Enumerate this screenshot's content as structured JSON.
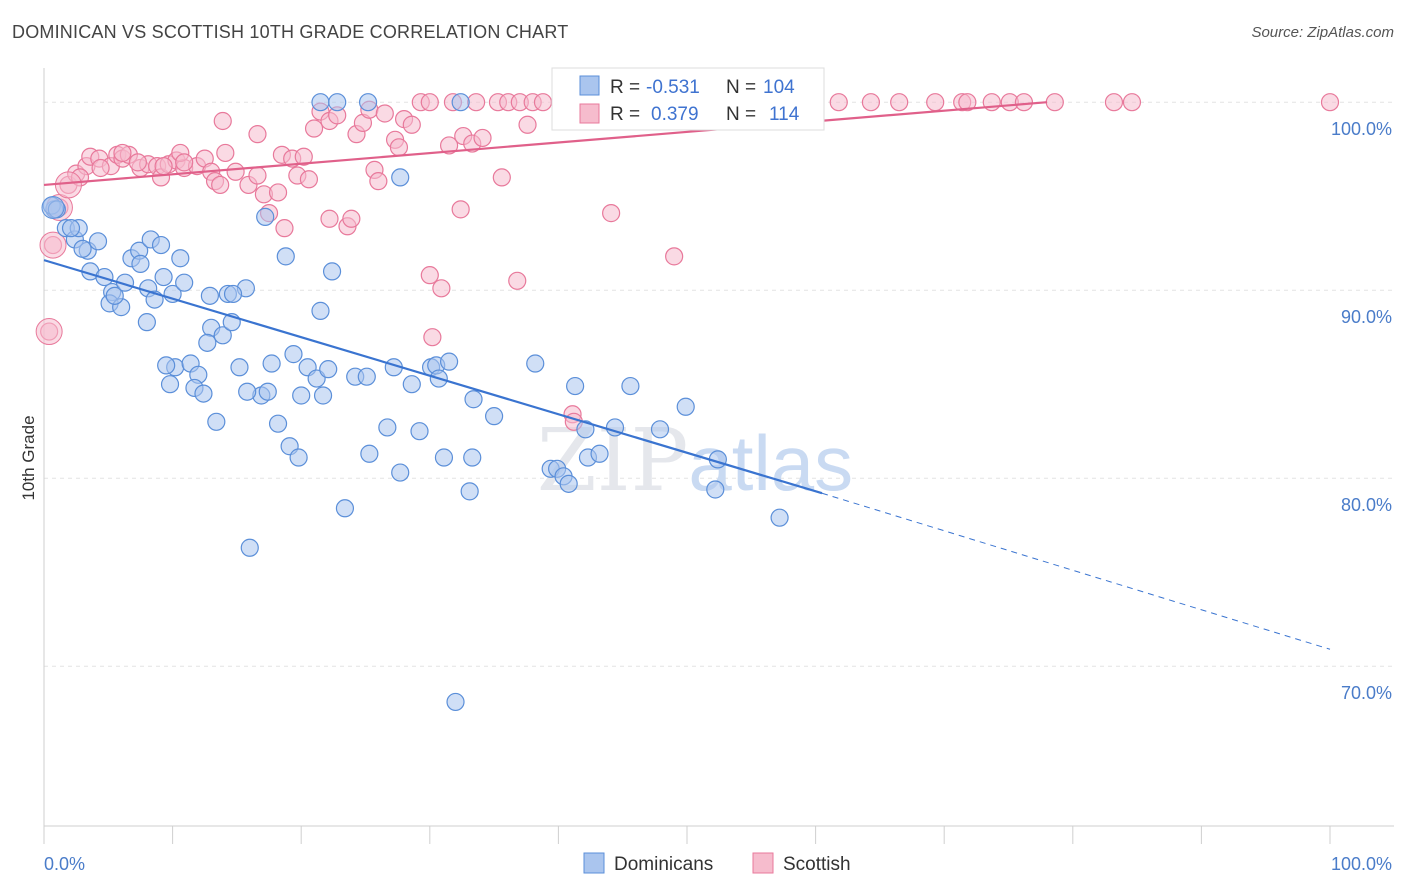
{
  "title": "DOMINICAN VS SCOTTISH 10TH GRADE CORRELATION CHART",
  "source": "Source: ZipAtlas.com",
  "watermark": "ZIPatlas",
  "colors": {
    "blue": "#5b8fd9",
    "blue_fill": "#aac5ee",
    "pink": "#e8799b",
    "pink_fill": "#f6bccd",
    "axis_text": "#4a7cc9"
  },
  "legend": {
    "rows": [
      {
        "r_label": "R =",
        "r_value": "-0.531",
        "n_label": "N =",
        "n_value": "104"
      },
      {
        "r_label": "R =",
        "r_value": "0.379",
        "n_label": "N =",
        "n_value": "114"
      }
    ]
  },
  "bottom_legend": {
    "items": [
      "Dominicans",
      "Scottish"
    ]
  },
  "chart_data": {
    "type": "scatter",
    "title": "DOMINICAN VS SCOTTISH 10TH GRADE CORRELATION CHART",
    "ylabel": "10th Grade",
    "xlabel": "",
    "x_tick_labels": [
      "0.0%",
      "100.0%"
    ],
    "y_tick_labels": [
      "100.0%",
      "90.0%",
      "80.0%",
      "70.0%"
    ],
    "y_ticks": [
      100,
      90,
      80,
      70
    ],
    "xlim": [
      0,
      100
    ],
    "ylim": [
      61.5,
      101.5
    ],
    "grid": true,
    "legend_position": "top-center",
    "series": [
      {
        "name": "Dominicans",
        "color": "#5b8fd9",
        "r": -0.531,
        "n": 104,
        "trend": {
          "x0": 0,
          "y0": 91.6,
          "x1": 60.5,
          "y1": 79.2,
          "dash_to_x": 100,
          "dash_to_y": 70.9
        },
        "points": [
          [
            0.8,
            94.3
          ],
          [
            0.6,
            94.5
          ],
          [
            1.7,
            93.3
          ],
          [
            2.4,
            92.7
          ],
          [
            2.7,
            93.3
          ],
          [
            3.4,
            92.1
          ],
          [
            4.2,
            92.6
          ],
          [
            3.0,
            92.2
          ],
          [
            3.6,
            91.0
          ],
          [
            4.7,
            90.7
          ],
          [
            5.3,
            89.9
          ],
          [
            5.1,
            89.3
          ],
          [
            6.0,
            89.1
          ],
          [
            6.8,
            91.7
          ],
          [
            7.4,
            92.1
          ],
          [
            7.5,
            91.4
          ],
          [
            8.1,
            90.1
          ],
          [
            8.6,
            89.5
          ],
          [
            8.3,
            92.7
          ],
          [
            9.1,
            92.4
          ],
          [
            9.3,
            90.7
          ],
          [
            10.0,
            89.8
          ],
          [
            10.6,
            91.7
          ],
          [
            10.9,
            90.4
          ],
          [
            12.9,
            89.7
          ],
          [
            14.3,
            89.8
          ],
          [
            15.7,
            90.1
          ],
          [
            14.7,
            89.8
          ],
          [
            13.0,
            88.0
          ],
          [
            12.7,
            87.2
          ],
          [
            13.9,
            87.6
          ],
          [
            14.6,
            88.3
          ],
          [
            10.2,
            85.9
          ],
          [
            11.4,
            86.1
          ],
          [
            12.0,
            85.5
          ],
          [
            9.8,
            85.0
          ],
          [
            11.7,
            84.8
          ],
          [
            12.4,
            84.5
          ],
          [
            15.2,
            85.9
          ],
          [
            17.7,
            86.1
          ],
          [
            16.9,
            84.4
          ],
          [
            17.4,
            84.6
          ],
          [
            19.4,
            86.6
          ],
          [
            20.5,
            85.9
          ],
          [
            21.2,
            85.3
          ],
          [
            21.7,
            84.4
          ],
          [
            22.1,
            85.8
          ],
          [
            24.2,
            85.4
          ],
          [
            25.1,
            85.4
          ],
          [
            27.2,
            85.9
          ],
          [
            28.6,
            85.0
          ],
          [
            30.1,
            85.9
          ],
          [
            30.5,
            86.0
          ],
          [
            30.7,
            85.3
          ],
          [
            31.5,
            86.2
          ],
          [
            33.4,
            84.2
          ],
          [
            35.0,
            83.3
          ],
          [
            38.2,
            86.1
          ],
          [
            41.3,
            84.9
          ],
          [
            45.6,
            84.9
          ],
          [
            13.4,
            83.0
          ],
          [
            18.2,
            82.9
          ],
          [
            19.1,
            81.7
          ],
          [
            19.8,
            81.1
          ],
          [
            25.3,
            81.3
          ],
          [
            26.7,
            82.7
          ],
          [
            27.7,
            80.3
          ],
          [
            29.2,
            82.5
          ],
          [
            31.1,
            81.1
          ],
          [
            33.3,
            81.1
          ],
          [
            39.4,
            80.5
          ],
          [
            39.9,
            80.5
          ],
          [
            40.4,
            80.1
          ],
          [
            40.8,
            79.7
          ],
          [
            42.3,
            81.1
          ],
          [
            43.2,
            81.3
          ],
          [
            42.1,
            82.6
          ],
          [
            44.4,
            82.7
          ],
          [
            47.9,
            82.6
          ],
          [
            49.9,
            83.8
          ],
          [
            52.4,
            81.0
          ],
          [
            52.2,
            79.4
          ],
          [
            57.2,
            77.9
          ],
          [
            33.1,
            79.3
          ],
          [
            23.4,
            78.4
          ],
          [
            16.0,
            76.3
          ],
          [
            32.0,
            68.1
          ],
          [
            17.2,
            93.9
          ],
          [
            18.8,
            91.8
          ],
          [
            21.5,
            88.9
          ],
          [
            22.4,
            91.0
          ],
          [
            27.7,
            96.0
          ],
          [
            25.2,
            100.0
          ],
          [
            21.5,
            100.0
          ],
          [
            22.8,
            100.0
          ],
          [
            32.4,
            100.0
          ],
          [
            1.0,
            94.3
          ],
          [
            2.1,
            93.3
          ],
          [
            5.5,
            89.7
          ],
          [
            8.0,
            88.3
          ],
          [
            9.5,
            86.0
          ],
          [
            6.3,
            90.4
          ],
          [
            15.8,
            84.6
          ],
          [
            20.0,
            84.4
          ]
        ]
      },
      {
        "name": "Scottish",
        "color": "#e8799b",
        "r": 0.379,
        "n": 114,
        "trend": {
          "x0": 0,
          "y0": 95.6,
          "x1": 78,
          "y1": 100.0
        },
        "points": [
          [
            0.4,
            87.8
          ],
          [
            0.7,
            92.4
          ],
          [
            1.2,
            94.4
          ],
          [
            1.9,
            95.6
          ],
          [
            2.5,
            96.2
          ],
          [
            3.3,
            96.6
          ],
          [
            3.6,
            97.1
          ],
          [
            4.3,
            97.0
          ],
          [
            5.2,
            96.6
          ],
          [
            5.7,
            97.2
          ],
          [
            6.1,
            97.0
          ],
          [
            6.6,
            97.2
          ],
          [
            7.5,
            96.5
          ],
          [
            8.1,
            96.7
          ],
          [
            8.8,
            96.6
          ],
          [
            9.1,
            96.0
          ],
          [
            9.7,
            96.7
          ],
          [
            10.3,
            96.9
          ],
          [
            10.9,
            96.5
          ],
          [
            10.6,
            97.3
          ],
          [
            11.9,
            96.6
          ],
          [
            12.5,
            97.0
          ],
          [
            13.0,
            96.3
          ],
          [
            13.3,
            95.8
          ],
          [
            14.1,
            97.3
          ],
          [
            14.9,
            96.3
          ],
          [
            15.9,
            95.6
          ],
          [
            16.6,
            96.1
          ],
          [
            17.1,
            95.1
          ],
          [
            17.5,
            94.1
          ],
          [
            18.2,
            95.2
          ],
          [
            18.5,
            97.2
          ],
          [
            19.3,
            97.0
          ],
          [
            19.7,
            96.1
          ],
          [
            20.2,
            97.1
          ],
          [
            20.6,
            95.9
          ],
          [
            18.7,
            93.3
          ],
          [
            21.0,
            98.6
          ],
          [
            21.5,
            99.5
          ],
          [
            22.2,
            99.0
          ],
          [
            22.8,
            99.3
          ],
          [
            23.6,
            93.4
          ],
          [
            23.9,
            93.8
          ],
          [
            24.3,
            98.3
          ],
          [
            24.8,
            98.9
          ],
          [
            25.3,
            99.6
          ],
          [
            25.7,
            96.4
          ],
          [
            26.0,
            95.8
          ],
          [
            26.5,
            99.4
          ],
          [
            27.3,
            98.0
          ],
          [
            27.6,
            97.6
          ],
          [
            28.0,
            99.1
          ],
          [
            28.6,
            98.8
          ],
          [
            29.3,
            100.0
          ],
          [
            30.0,
            100.0
          ],
          [
            31.5,
            97.7
          ],
          [
            31.8,
            100.0
          ],
          [
            32.4,
            94.3
          ],
          [
            32.6,
            98.2
          ],
          [
            33.3,
            97.8
          ],
          [
            33.6,
            100.0
          ],
          [
            34.1,
            98.1
          ],
          [
            35.3,
            100.0
          ],
          [
            35.6,
            96.0
          ],
          [
            36.1,
            100.0
          ],
          [
            37.0,
            100.0
          ],
          [
            37.6,
            98.8
          ],
          [
            38.0,
            100.0
          ],
          [
            38.8,
            100.0
          ],
          [
            40.3,
            100.0
          ],
          [
            41.2,
            100.0
          ],
          [
            42.3,
            100.0
          ],
          [
            43.1,
            100.0
          ],
          [
            44.2,
            100.0
          ],
          [
            45.4,
            100.0
          ],
          [
            46.2,
            100.0
          ],
          [
            47.5,
            100.0
          ],
          [
            48.7,
            100.0
          ],
          [
            49.4,
            100.0
          ],
          [
            50.2,
            100.0
          ],
          [
            53.1,
            100.0
          ],
          [
            55.7,
            100.0
          ],
          [
            58.6,
            100.0
          ],
          [
            61.8,
            100.0
          ],
          [
            64.3,
            100.0
          ],
          [
            66.5,
            100.0
          ],
          [
            69.3,
            100.0
          ],
          [
            71.4,
            100.0
          ],
          [
            71.8,
            100.0
          ],
          [
            73.7,
            100.0
          ],
          [
            75.1,
            100.0
          ],
          [
            76.2,
            100.0
          ],
          [
            78.6,
            100.0
          ],
          [
            83.2,
            100.0
          ],
          [
            84.6,
            100.0
          ],
          [
            100.0,
            100.0
          ],
          [
            16.6,
            98.3
          ],
          [
            13.7,
            95.6
          ],
          [
            22.2,
            93.8
          ],
          [
            30.9,
            90.1
          ],
          [
            30.0,
            90.8
          ],
          [
            36.8,
            90.5
          ],
          [
            44.1,
            94.1
          ],
          [
            49.0,
            91.8
          ],
          [
            41.1,
            83.4
          ],
          [
            41.2,
            83.0
          ],
          [
            30.2,
            87.5
          ],
          [
            13.9,
            99.0
          ],
          [
            10.9,
            96.8
          ],
          [
            2.8,
            96.0
          ],
          [
            4.4,
            96.5
          ],
          [
            6.1,
            97.3
          ],
          [
            7.3,
            96.8
          ],
          [
            9.3,
            96.6
          ]
        ]
      }
    ]
  }
}
